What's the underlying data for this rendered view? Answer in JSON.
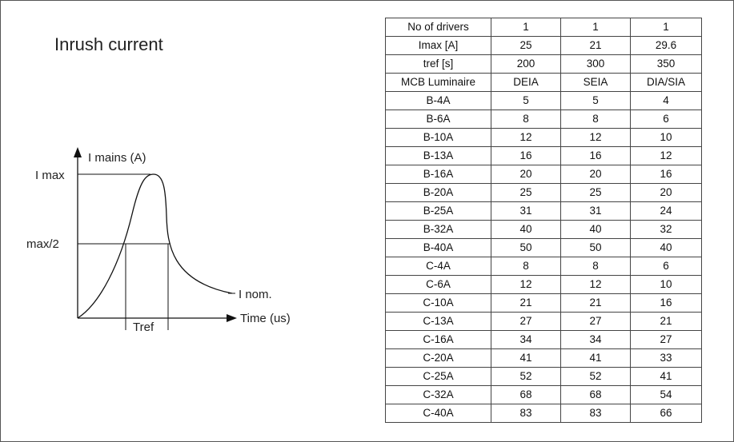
{
  "title": "Inrush current",
  "diagram": {
    "y_axis_label": "I mains (A)",
    "x_axis_label": "Time (us)",
    "imax_label": "I max",
    "half_label": "max/2",
    "nominal_label": "I nom.",
    "tref_label": "Tref"
  },
  "table": {
    "header_rows": [
      [
        "No of drivers",
        "1",
        "1",
        "1"
      ],
      [
        "Imax [A]",
        "25",
        "21",
        "29.6"
      ],
      [
        "tref [s]",
        "200",
        "300",
        "350"
      ],
      [
        "MCB Luminaire",
        "DEIA",
        "SEIA",
        "DIA/SIA"
      ]
    ],
    "rows": [
      [
        "B-4A",
        "5",
        "5",
        "4"
      ],
      [
        "B-6A",
        "8",
        "8",
        "6"
      ],
      [
        "B-10A",
        "12",
        "12",
        "10"
      ],
      [
        "B-13A",
        "16",
        "16",
        "12"
      ],
      [
        "B-16A",
        "20",
        "20",
        "16"
      ],
      [
        "B-20A",
        "25",
        "25",
        "20"
      ],
      [
        "B-25A",
        "31",
        "31",
        "24"
      ],
      [
        "B-32A",
        "40",
        "40",
        "32"
      ],
      [
        "B-40A",
        "50",
        "50",
        "40"
      ],
      [
        "C-4A",
        "8",
        "8",
        "6"
      ],
      [
        "C-6A",
        "12",
        "12",
        "10"
      ],
      [
        "C-10A",
        "21",
        "21",
        "16"
      ],
      [
        "C-13A",
        "27",
        "27",
        "21"
      ],
      [
        "C-16A",
        "34",
        "34",
        "27"
      ],
      [
        "C-20A",
        "41",
        "41",
        "33"
      ],
      [
        "C-25A",
        "52",
        "52",
        "41"
      ],
      [
        "C-32A",
        "68",
        "68",
        "54"
      ],
      [
        "C-40A",
        "83",
        "83",
        "66"
      ]
    ]
  }
}
